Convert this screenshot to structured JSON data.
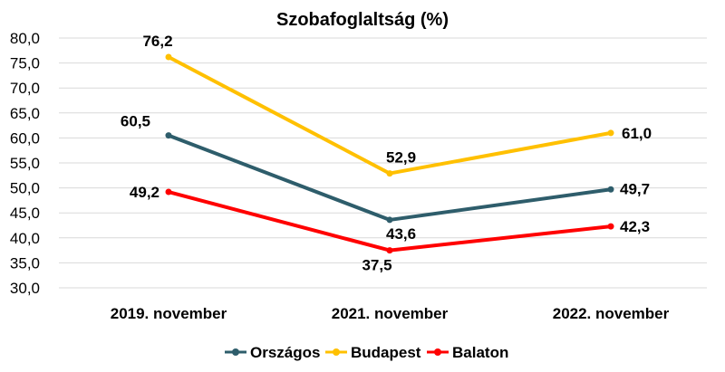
{
  "chart_data": {
    "type": "line",
    "title": "Szobafoglaltság (%)",
    "categories": [
      "2019. november",
      "2021. november",
      "2022. november"
    ],
    "series": [
      {
        "name": "Országos",
        "values": [
          60.5,
          43.6,
          49.7
        ],
        "value_labels": [
          "60,5",
          "43,6",
          "49,7"
        ],
        "color": "#2e5d6b"
      },
      {
        "name": "Budapest",
        "values": [
          76.2,
          52.9,
          61.0
        ],
        "value_labels": [
          "76,2",
          "52,9",
          "61,0"
        ],
        "color": "#ffc000"
      },
      {
        "name": "Balaton",
        "values": [
          49.2,
          37.5,
          42.3
        ],
        "value_labels": [
          "49,2",
          "37,5",
          "42,3"
        ],
        "color": "#ff0000"
      }
    ],
    "ylim": [
      30,
      80
    ],
    "y_ticks": [
      "30,0",
      "35,0",
      "40,0",
      "45,0",
      "50,0",
      "55,0",
      "60,0",
      "65,0",
      "70,0",
      "75,0",
      "80,0"
    ],
    "grid": true,
    "legend": "bottom"
  }
}
